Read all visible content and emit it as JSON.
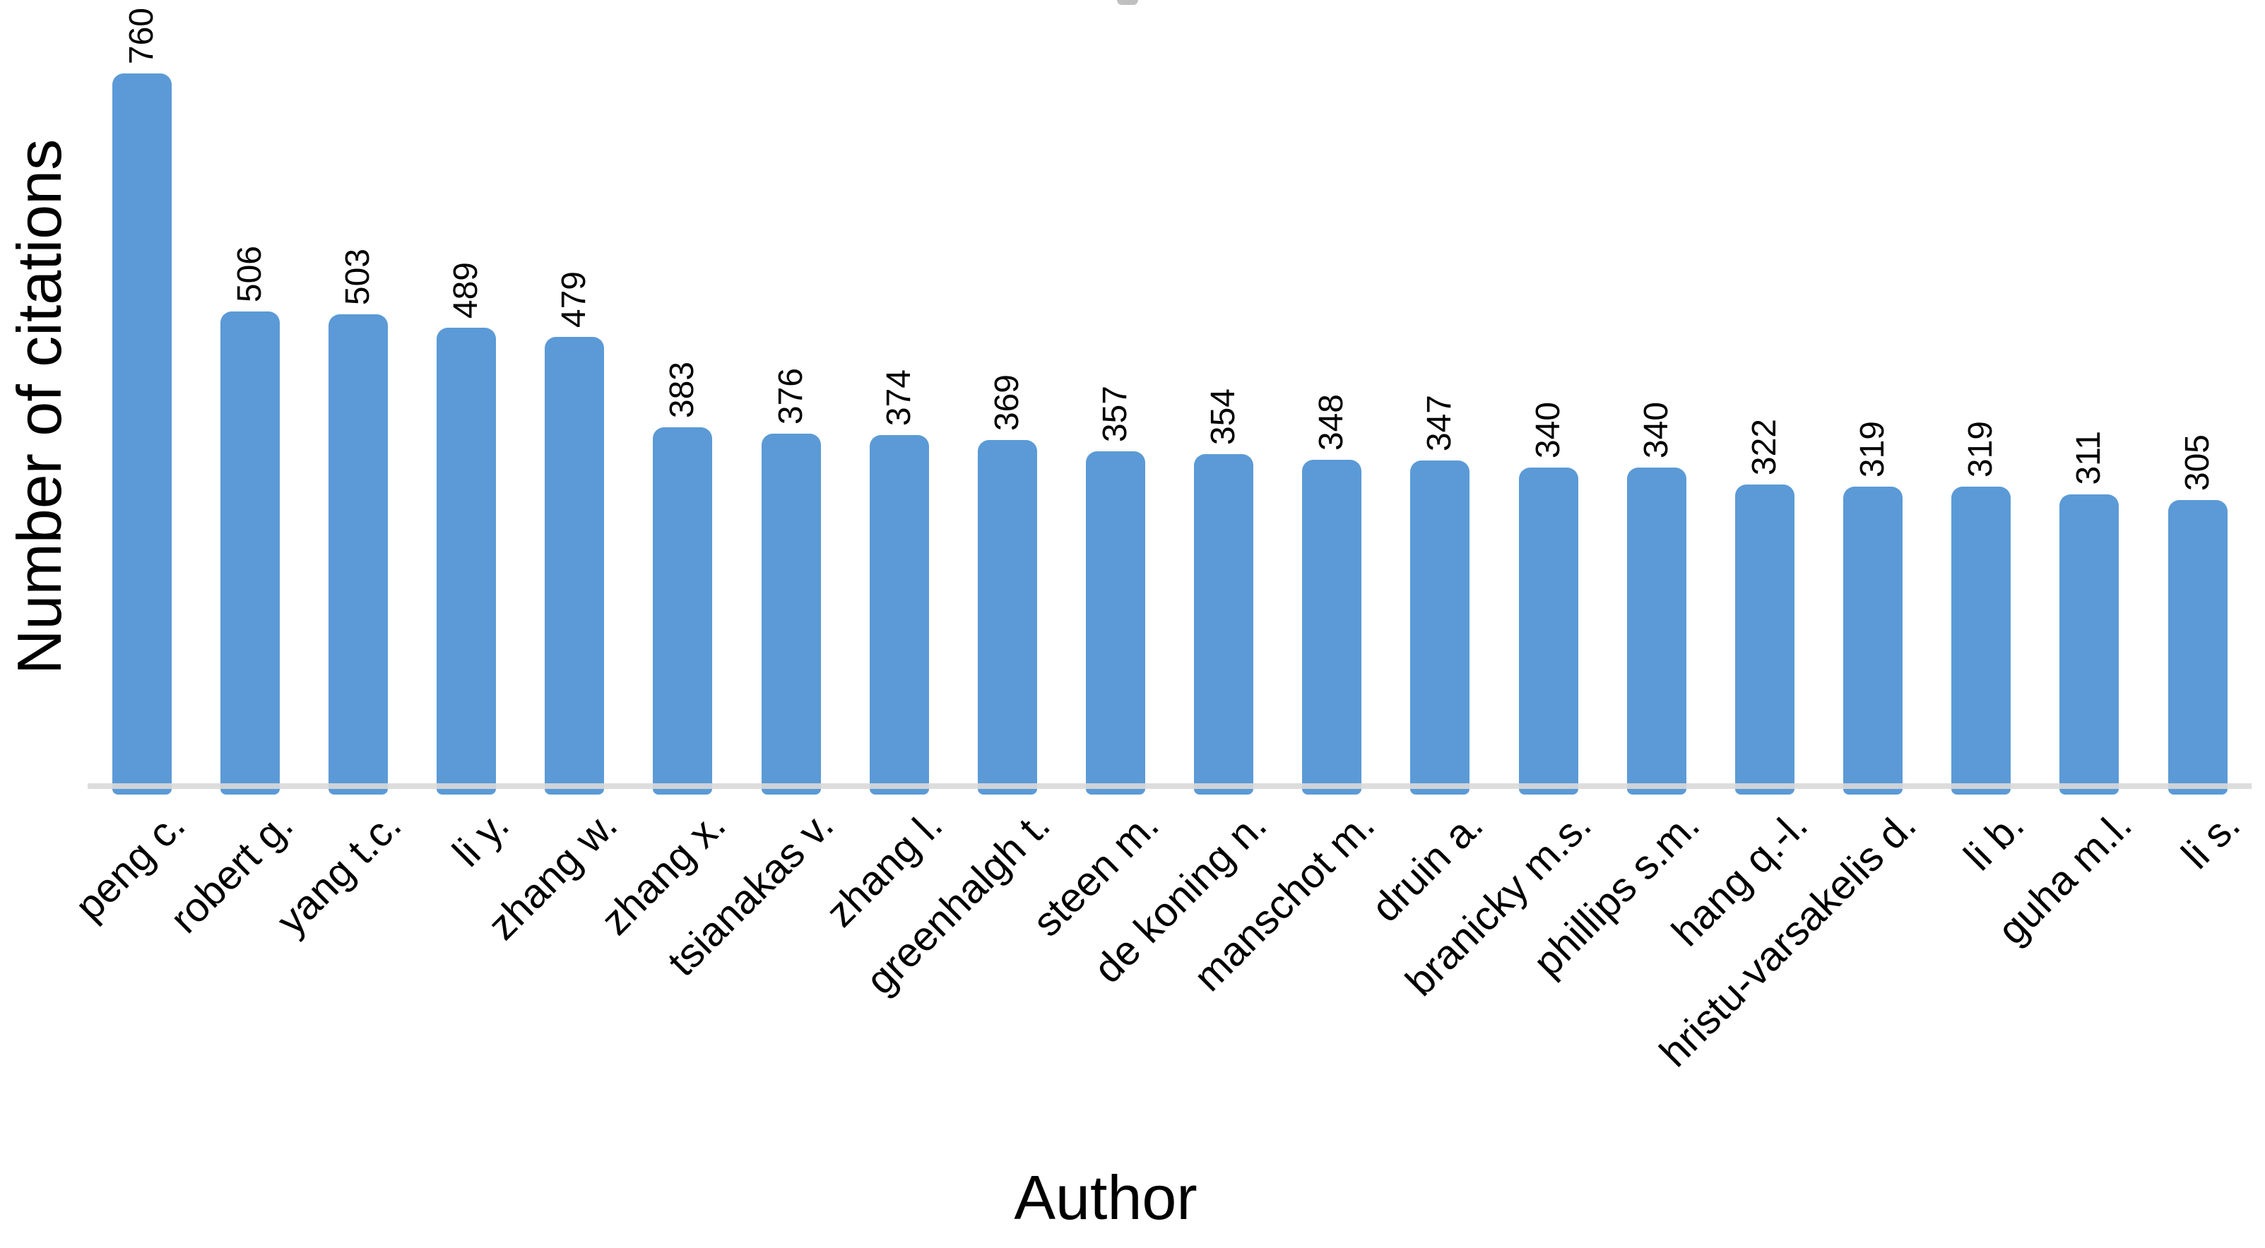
{
  "chart_data": {
    "type": "bar",
    "title": "",
    "xlabel": "Author",
    "ylabel": "Number of citations",
    "categories": [
      "peng c.",
      "robert g.",
      "yang t.c.",
      "li y.",
      "zhang w.",
      "zhang x.",
      "tsianakas v.",
      "zhang l.",
      "greenhalgh t.",
      "steen m.",
      "de koning n.",
      "manschot m.",
      "druin a.",
      "branicky m.s.",
      "phillips s.m.",
      "hang q.-l.",
      "hristu-varsakelis d.",
      "li b.",
      "guha m.l.",
      "li s."
    ],
    "values": [
      760,
      506,
      503,
      489,
      479,
      383,
      376,
      374,
      369,
      357,
      354,
      348,
      347,
      340,
      340,
      322,
      319,
      319,
      311,
      305
    ],
    "ylim": [
      0,
      760
    ],
    "grid": false,
    "legend": "none",
    "data_labels": "rotated 90° (read bottom-to-top), above bars",
    "category_labels": "rotated 45°",
    "bar_color": "#5B9AD6",
    "axis_line_color": "#D9D9D9",
    "text_color": "#000000"
  }
}
